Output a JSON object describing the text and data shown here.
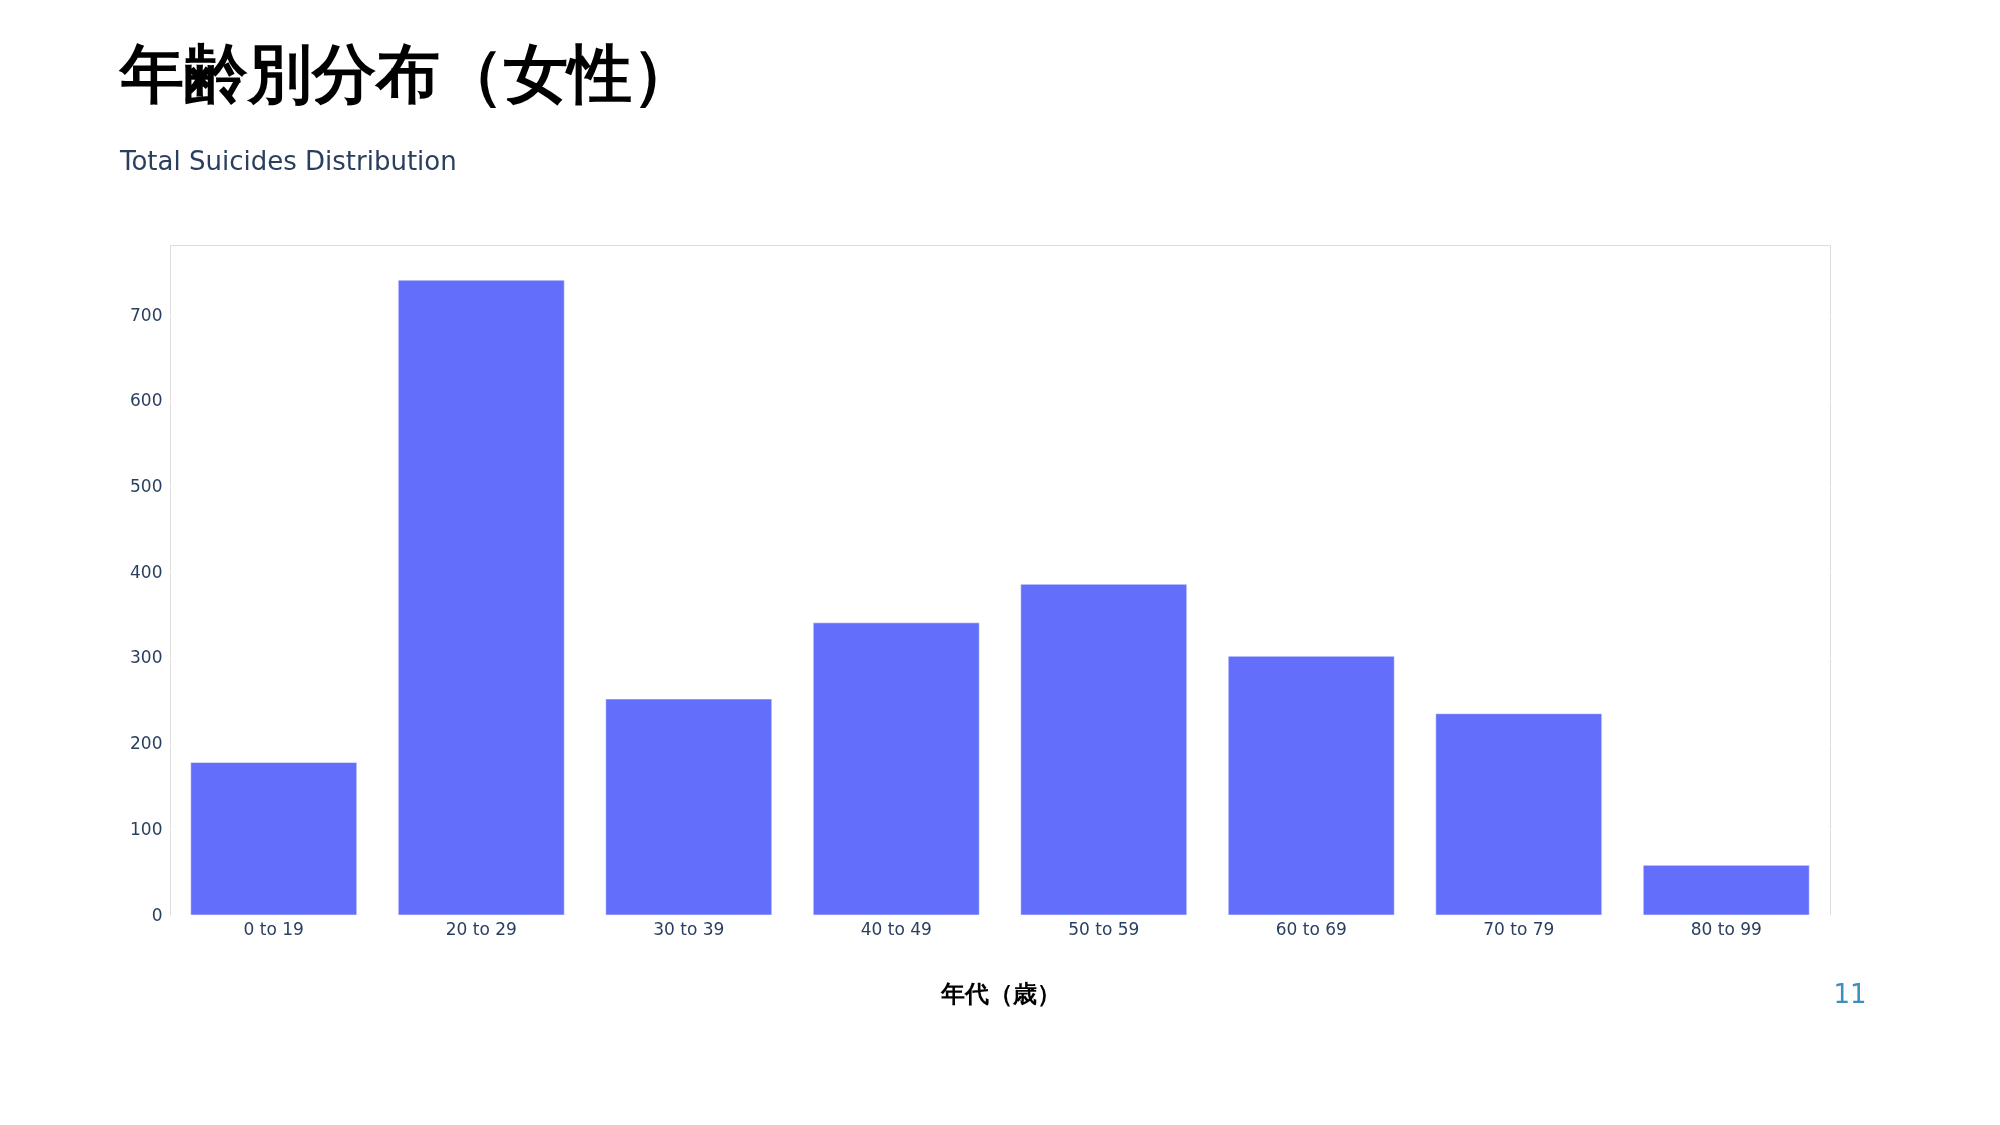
{
  "chart_data": {
    "type": "bar",
    "title": "年齢別分布（女性）",
    "subtitle": "Total Suicides Distribution",
    "xlabel": "年代（歳）",
    "categories": [
      "0 to 19",
      "20 to 29",
      "30 to 39",
      "40 to 49",
      "50 to 59",
      "60 to 69",
      "70 to 79",
      "80 to 99"
    ],
    "values": [
      178,
      741,
      252,
      341,
      386,
      302,
      235,
      58
    ],
    "color": "#636efa",
    "ylim": [
      0,
      782
    ],
    "yticks": [
      0,
      100,
      200,
      300,
      400,
      500,
      600,
      700
    ],
    "grid": "y",
    "annotations": [
      "11"
    ]
  }
}
